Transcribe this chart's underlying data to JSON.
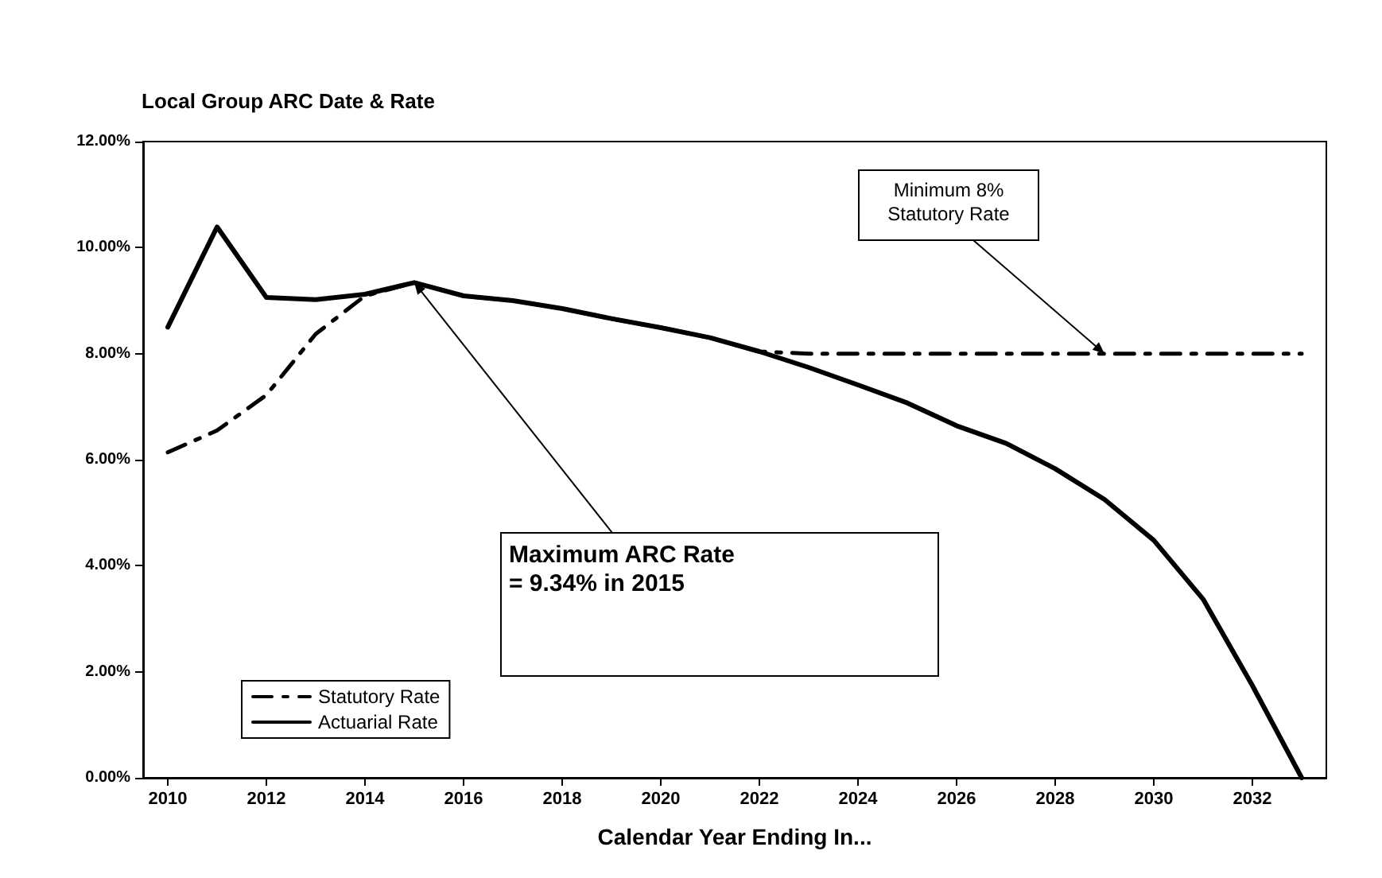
{
  "chart_data": {
    "type": "line",
    "title": "Local Group ARC Date & Rate",
    "xlabel": "Calendar Year Ending In...",
    "x": [
      2010,
      2011,
      2012,
      2013,
      2014,
      2015,
      2016,
      2017,
      2018,
      2019,
      2020,
      2021,
      2022,
      2023,
      2024,
      2025,
      2026,
      2027,
      2028,
      2029,
      2030,
      2031,
      2032,
      2033
    ],
    "series": [
      {
        "name": "Statutory Rate",
        "color": "#000000",
        "line_style": "dashed",
        "values": [
          6.14,
          6.55,
          7.22,
          8.37,
          9.09,
          9.34,
          9.09,
          9.0,
          8.85,
          8.66,
          8.49,
          8.3,
          8.04,
          8.0,
          8.0,
          8.0,
          8.0,
          8.0,
          8.0,
          8.0,
          8.0,
          8.0,
          8.0,
          8.0
        ]
      },
      {
        "name": "Actuarial Rate",
        "color": "#000000",
        "line_style": "solid",
        "values": [
          8.5,
          10.39,
          9.06,
          9.02,
          9.12,
          9.34,
          9.09,
          9.0,
          8.85,
          8.66,
          8.49,
          8.3,
          8.04,
          7.74,
          7.41,
          7.07,
          6.64,
          6.31,
          5.83,
          5.25,
          4.48,
          3.37,
          1.74,
          0.0
        ]
      }
    ],
    "xlim": [
      2009.5,
      2033.5
    ],
    "xticks": [
      2010,
      2012,
      2014,
      2016,
      2018,
      2020,
      2022,
      2024,
      2026,
      2028,
      2030,
      2032
    ],
    "ylim": [
      0,
      12
    ],
    "yticks": [
      {
        "value": 0,
        "label": "0.00%"
      },
      {
        "value": 2,
        "label": "2.00%"
      },
      {
        "value": 4,
        "label": "4.00%"
      },
      {
        "value": 6,
        "label": "6.00%"
      },
      {
        "value": 8,
        "label": "8.00%"
      },
      {
        "value": 10,
        "label": "10.00%"
      },
      {
        "value": 12,
        "label": "12.00%"
      }
    ],
    "annotations": [
      {
        "text": "Maximum ARC Rate\n= 9.34% in 2015",
        "x": 2015,
        "y": 9.34
      },
      {
        "text": "Minimum 8%\nStatutory Rate",
        "x": 2029,
        "y": 8.0
      }
    ],
    "grid": false,
    "legend": "bottom left",
    "marker": "none"
  }
}
